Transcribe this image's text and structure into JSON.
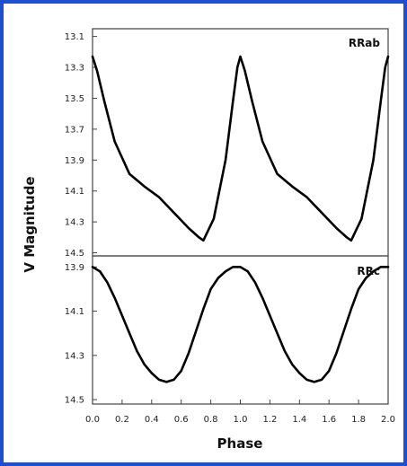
{
  "frame_color": "#1e4fcf",
  "chart_data": {
    "type": "line",
    "xlabel": "Phase",
    "ylabel": "V Magnitude",
    "xlim": [
      0.0,
      2.0
    ],
    "x_ticks": [
      "0.0",
      "0.2",
      "0.4",
      "0.6",
      "0.8",
      "1.0",
      "1.2",
      "1.4",
      "1.6",
      "1.8",
      "2.0"
    ],
    "panels": [
      {
        "label": "RRab",
        "y_inverted": true,
        "ylim": [
          13.05,
          14.52
        ],
        "y_ticks": [
          "13.1",
          "13.3",
          "13.5",
          "13.7",
          "13.9",
          "14.1",
          "14.3",
          "14.5"
        ],
        "x": [
          0.0,
          0.03,
          0.08,
          0.15,
          0.25,
          0.35,
          0.45,
          0.55,
          0.65,
          0.72,
          0.75,
          0.78,
          0.82,
          0.9,
          0.95,
          0.98,
          1.0,
          1.03,
          1.08,
          1.15,
          1.25,
          1.35,
          1.45,
          1.55,
          1.65,
          1.72,
          1.75,
          1.78,
          1.82,
          1.9,
          1.95,
          1.98,
          2.0
        ],
        "y": [
          13.23,
          13.32,
          13.52,
          13.78,
          13.99,
          14.07,
          14.14,
          14.24,
          14.34,
          14.4,
          14.42,
          14.36,
          14.28,
          13.9,
          13.52,
          13.3,
          13.23,
          13.32,
          13.52,
          13.78,
          13.99,
          14.07,
          14.14,
          14.24,
          14.34,
          14.4,
          14.42,
          14.36,
          14.28,
          13.9,
          13.52,
          13.3,
          13.23
        ]
      },
      {
        "label": "RRc",
        "y_inverted": true,
        "ylim": [
          13.85,
          14.52
        ],
        "y_ticks": [
          "13.9",
          "14.1",
          "14.3",
          "14.5"
        ],
        "x": [
          0.0,
          0.05,
          0.1,
          0.15,
          0.2,
          0.25,
          0.3,
          0.35,
          0.4,
          0.45,
          0.5,
          0.55,
          0.6,
          0.65,
          0.7,
          0.75,
          0.8,
          0.85,
          0.9,
          0.95,
          1.0,
          1.05,
          1.1,
          1.15,
          1.2,
          1.25,
          1.3,
          1.35,
          1.4,
          1.45,
          1.5,
          1.55,
          1.6,
          1.65,
          1.7,
          1.75,
          1.8,
          1.85,
          1.9,
          1.95,
          2.0
        ],
        "y": [
          13.9,
          13.92,
          13.97,
          14.04,
          14.12,
          14.2,
          14.28,
          14.34,
          14.38,
          14.41,
          14.42,
          14.41,
          14.37,
          14.29,
          14.19,
          14.09,
          14.0,
          13.95,
          13.92,
          13.9,
          13.9,
          13.92,
          13.97,
          14.04,
          14.12,
          14.2,
          14.28,
          14.34,
          14.38,
          14.41,
          14.42,
          14.41,
          14.37,
          14.29,
          14.19,
          14.09,
          14.0,
          13.95,
          13.92,
          13.9,
          13.9
        ]
      }
    ]
  }
}
